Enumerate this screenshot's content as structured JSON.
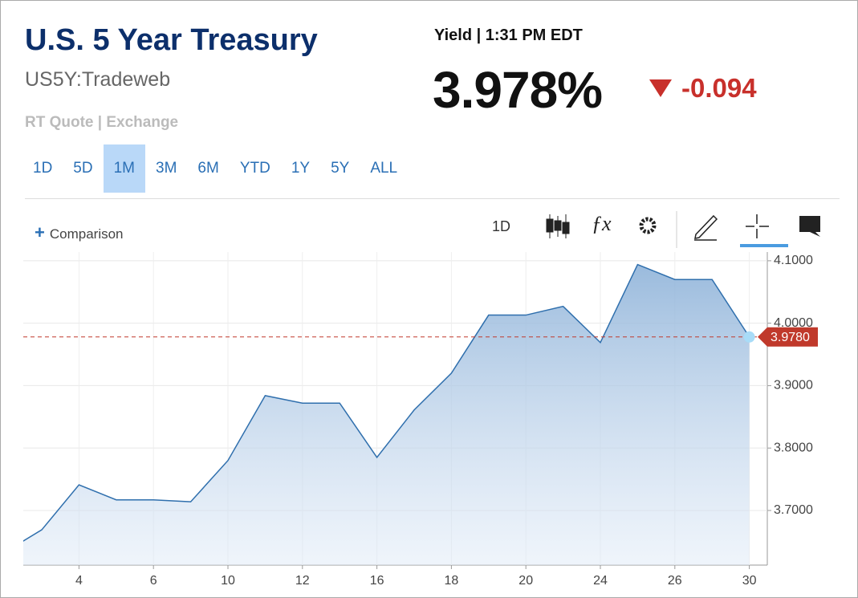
{
  "header": {
    "title": "U.S. 5 Year Treasury",
    "symbol": "US5Y:Tradeweb",
    "source": "RT Quote | Exchange",
    "quote_label": "Yield | 1:31 PM EDT",
    "price": "3.978%",
    "change": "-0.094"
  },
  "tabs": {
    "items": [
      "1D",
      "5D",
      "1M",
      "3M",
      "6M",
      "YTD",
      "1Y",
      "5Y",
      "ALL"
    ],
    "active": "1M"
  },
  "toolbar": {
    "comparison": "Comparison",
    "interval": "1D"
  },
  "chart_data": {
    "type": "area",
    "color": "#2f6fad",
    "categories": [
      null,
      null,
      "4",
      null,
      "6",
      null,
      "10",
      null,
      "12",
      null,
      "16",
      null,
      "18",
      null,
      "20",
      null,
      "24",
      null,
      "26",
      null,
      "30"
    ],
    "values": [
      3.633,
      3.669,
      3.741,
      3.717,
      3.717,
      3.714,
      3.78,
      3.884,
      3.872,
      3.872,
      3.785,
      3.861,
      3.92,
      4.013,
      4.013,
      4.027,
      3.969,
      4.094,
      4.07,
      4.07,
      3.978
    ],
    "ylim": [
      3.6125,
      4.114
    ],
    "yticks": [
      {
        "value": 3.7,
        "label": "3.7000"
      },
      {
        "value": 3.8,
        "label": "3.8000"
      },
      {
        "value": 3.9,
        "label": "3.9000"
      },
      {
        "value": 4.0,
        "label": "4.0000"
      },
      {
        "value": 4.1,
        "label": "4.1000"
      }
    ],
    "grid": true,
    "reference_line": {
      "value": 3.978,
      "label": "3.9780",
      "color": "#c0392b"
    }
  }
}
